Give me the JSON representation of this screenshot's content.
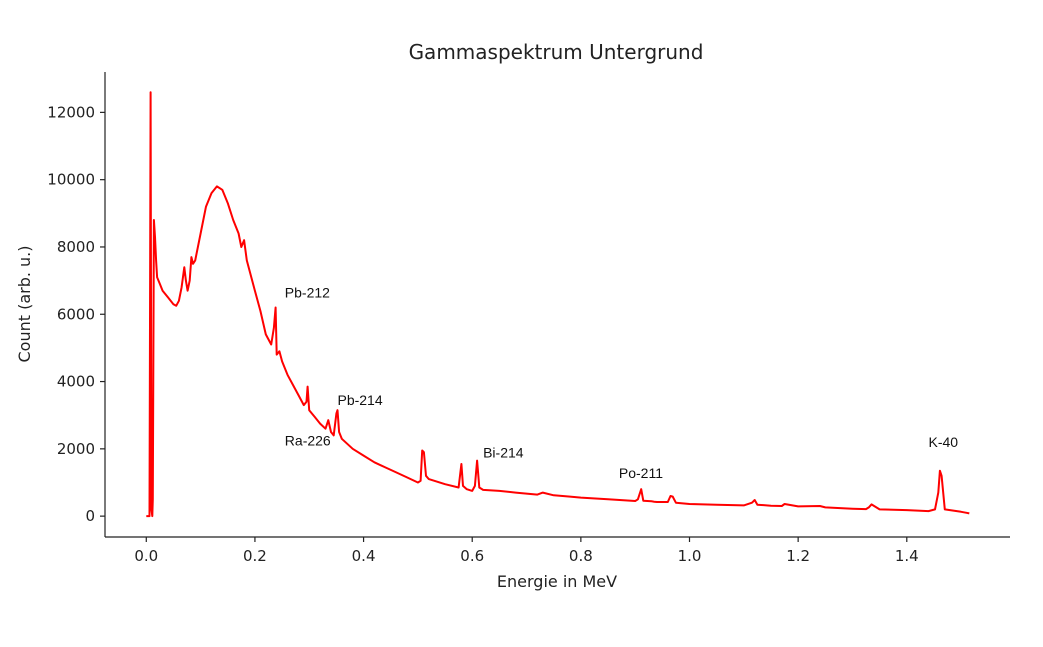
{
  "chart_data": {
    "type": "line",
    "title": "Gammaspektrum Untergrund",
    "xlabel": "Energie in MeV",
    "ylabel": "Count (arb. u.)",
    "xlim": [
      -0.076,
      1.59
    ],
    "ylim": [
      -620,
      13200
    ],
    "xticks": [
      0.0,
      0.2,
      0.4,
      0.6,
      0.8,
      1.0,
      1.2,
      1.4
    ],
    "xtick_labels": [
      "0.0",
      "0.2",
      "0.4",
      "0.6",
      "0.8",
      "1.0",
      "1.2",
      "1.4"
    ],
    "yticks": [
      0,
      2000,
      4000,
      6000,
      8000,
      10000,
      12000
    ],
    "ytick_labels": [
      "0",
      "2000",
      "4000",
      "6000",
      "8000",
      "10000",
      "12000"
    ],
    "grid": false,
    "series": [
      {
        "color": "#ff0000",
        "x": [
          0.0,
          0.006,
          0.008,
          0.0095,
          0.011,
          0.012,
          0.014,
          0.016,
          0.018,
          0.02,
          0.025,
          0.03,
          0.04,
          0.05,
          0.055,
          0.06,
          0.065,
          0.07,
          0.073,
          0.076,
          0.08,
          0.083,
          0.086,
          0.09,
          0.1,
          0.11,
          0.12,
          0.13,
          0.14,
          0.15,
          0.16,
          0.17,
          0.175,
          0.18,
          0.185,
          0.19,
          0.2,
          0.21,
          0.22,
          0.23,
          0.235,
          0.238,
          0.24,
          0.245,
          0.25,
          0.26,
          0.28,
          0.29,
          0.295,
          0.297,
          0.3,
          0.31,
          0.32,
          0.33,
          0.335,
          0.34,
          0.345,
          0.35,
          0.352,
          0.355,
          0.36,
          0.38,
          0.4,
          0.42,
          0.44,
          0.46,
          0.48,
          0.5,
          0.505,
          0.508,
          0.511,
          0.515,
          0.52,
          0.55,
          0.575,
          0.58,
          0.583,
          0.59,
          0.6,
          0.605,
          0.609,
          0.613,
          0.62,
          0.65,
          0.68,
          0.7,
          0.72,
          0.73,
          0.75,
          0.78,
          0.8,
          0.85,
          0.9,
          0.905,
          0.911,
          0.915,
          0.93,
          0.935,
          0.94,
          0.96,
          0.965,
          0.969,
          0.975,
          1.0,
          1.05,
          1.1,
          1.115,
          1.12,
          1.125,
          1.15,
          1.17,
          1.175,
          1.2,
          1.24,
          1.25,
          1.3,
          1.325,
          1.33,
          1.335,
          1.35,
          1.4,
          1.44,
          1.452,
          1.458,
          1.461,
          1.464,
          1.47,
          1.5,
          1.51,
          1.515
        ],
        "y": [
          0,
          0,
          12600,
          200,
          0,
          500,
          8800,
          8300,
          7600,
          7100,
          6900,
          6700,
          6500,
          6300,
          6250,
          6400,
          6800,
          7400,
          7000,
          6700,
          7000,
          7700,
          7500,
          7600,
          8400,
          9200,
          9600,
          9800,
          9700,
          9300,
          8800,
          8400,
          8000,
          8200,
          7600,
          7300,
          6700,
          6100,
          5400,
          5100,
          5600,
          6200,
          4800,
          4900,
          4600,
          4200,
          3600,
          3300,
          3400,
          3850,
          3150,
          2950,
          2750,
          2600,
          2850,
          2500,
          2400,
          3050,
          3150,
          2500,
          2300,
          2000,
          1800,
          1600,
          1450,
          1300,
          1150,
          1000,
          1050,
          1950,
          1900,
          1200,
          1100,
          950,
          850,
          1550,
          900,
          800,
          750,
          900,
          1650,
          850,
          780,
          750,
          700,
          670,
          640,
          700,
          620,
          580,
          550,
          500,
          450,
          500,
          800,
          460,
          440,
          430,
          420,
          420,
          600,
          580,
          400,
          360,
          340,
          320,
          400,
          480,
          340,
          310,
          300,
          360,
          290,
          300,
          260,
          220,
          210,
          260,
          350,
          200,
          180,
          150,
          200,
          700,
          1350,
          1200,
          200,
          130,
          100,
          80
        ]
      }
    ],
    "annotations": [
      {
        "text": "Pb-212",
        "x": 0.255,
        "y": 6500
      },
      {
        "text": "Pb-214",
        "x": 0.352,
        "y": 3300
      },
      {
        "text": "Ra-226",
        "x": 0.255,
        "y": 2100
      },
      {
        "text": "Bi-214",
        "x": 0.62,
        "y": 1750
      },
      {
        "text": "Po-211",
        "x": 0.87,
        "y": 1130
      },
      {
        "text": "K-40",
        "x": 1.44,
        "y": 2050
      }
    ]
  }
}
